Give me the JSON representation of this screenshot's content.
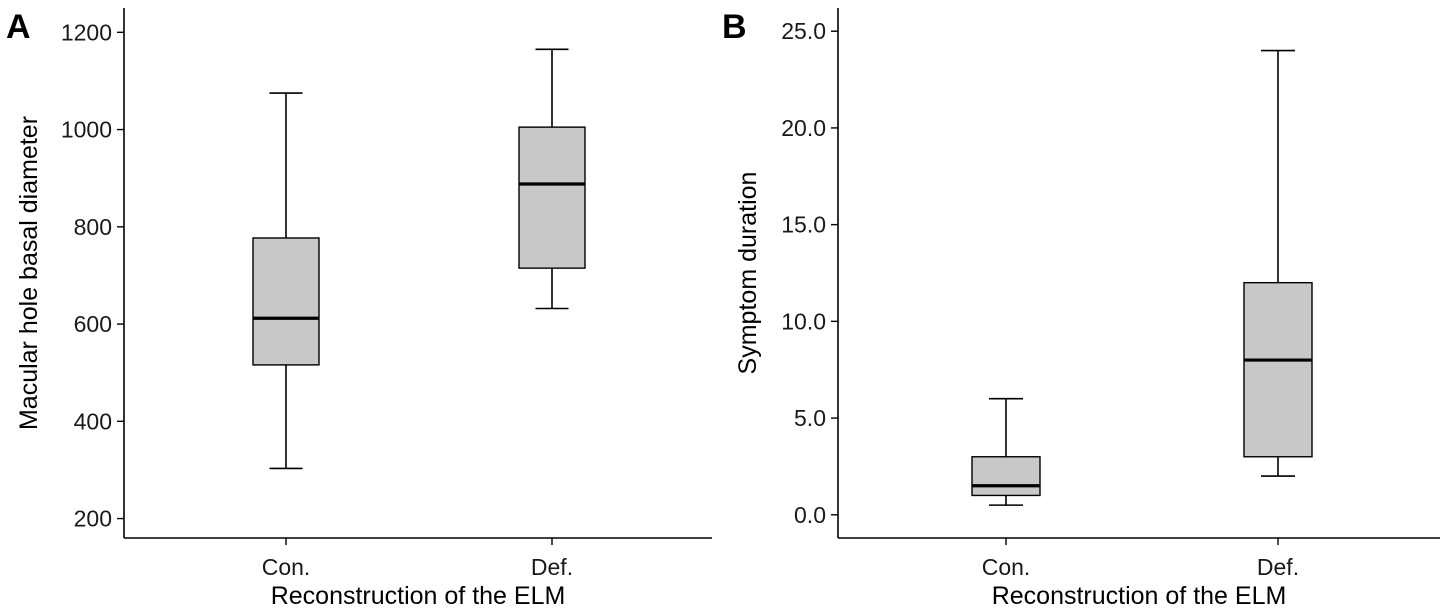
{
  "chart_data": [
    {
      "type": "box",
      "panel_label": "A",
      "xlabel": "Reconstruction of the ELM",
      "ylabel": "Macular hole basal diameter",
      "ylim": [
        160,
        1250
      ],
      "yticks": [
        200,
        400,
        600,
        800,
        1000,
        1200
      ],
      "ytick_labels": [
        "200",
        "400",
        "600",
        "800",
        "1000",
        "1200"
      ],
      "categories": [
        "Con.",
        "Def."
      ],
      "boxes": [
        {
          "category": "Con.",
          "min": 303,
          "q1": 516,
          "median": 612,
          "q3": 777,
          "max": 1075
        },
        {
          "category": "Def.",
          "min": 632,
          "q1": 715,
          "median": 888,
          "q3": 1005,
          "max": 1165
        }
      ],
      "grid": false
    },
    {
      "type": "box",
      "panel_label": "B",
      "xlabel": "Reconstruction of the ELM",
      "ylabel": "Symptom duration",
      "ylim": [
        -1.2,
        26.2
      ],
      "yticks": [
        0,
        5,
        10,
        15,
        20,
        25
      ],
      "ytick_labels": [
        "0.0",
        "5.0",
        "10.0",
        "15.0",
        "20.0",
        "25.0"
      ],
      "categories": [
        "Con.",
        "Def."
      ],
      "boxes": [
        {
          "category": "Con.",
          "min": 0.5,
          "q1": 1.0,
          "median": 1.5,
          "q3": 3.0,
          "max": 6.0
        },
        {
          "category": "Def.",
          "min": 2.0,
          "q1": 3.0,
          "median": 8.0,
          "q3": 12.0,
          "max": 24.0
        }
      ],
      "grid": false
    }
  ]
}
